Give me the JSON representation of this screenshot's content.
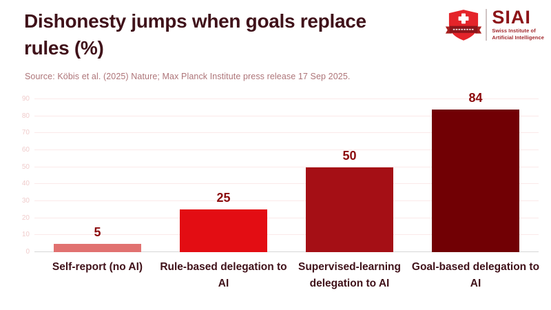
{
  "header": {
    "title": "Dishonesty jumps when goals replace rules (%)",
    "source_note": "Source: Köbis et al. (2025) Nature; Max Planck Institute press release 17 Sep 2025."
  },
  "logo": {
    "wordmark": "SIAI",
    "subtitle_line1": "Swiss Institute of",
    "subtitle_line2": "Artificial Intelligence",
    "shield_icon": "swiss-shield-icon"
  },
  "chart_data": {
    "type": "bar",
    "title": "Dishonesty jumps when goals replace rules (%)",
    "categories": [
      "Self-report (no AI)",
      "Rule-based delegation to AI",
      "Supervised-learning delegation to AI",
      "Goal-based delegation to AI"
    ],
    "values": [
      5,
      25,
      50,
      84
    ],
    "bar_colors": [
      "#e17170",
      "#e30d13",
      "#a50f15",
      "#710004"
    ],
    "value_label_color": "#8b0a0c",
    "ylim": [
      0,
      90
    ],
    "yticks": [
      0,
      10,
      20,
      30,
      40,
      50,
      60,
      70,
      80,
      90
    ],
    "grid": true,
    "legend": false,
    "xlabel": "",
    "ylabel": ""
  },
  "colors": {
    "background": "#ffffff",
    "title_text": "#40121a",
    "source_text": "#ad7478",
    "category_text": "#40121a",
    "ytick_text": "#f0cccc",
    "gridline": "#fbe9e9",
    "zeroline": "#d6d6d6",
    "logo_shield_red": "#e4242a",
    "logo_ribbon": "#8b161b",
    "logo_wordmark": "#8c1418",
    "logo_subtitle": "#a1272c"
  }
}
